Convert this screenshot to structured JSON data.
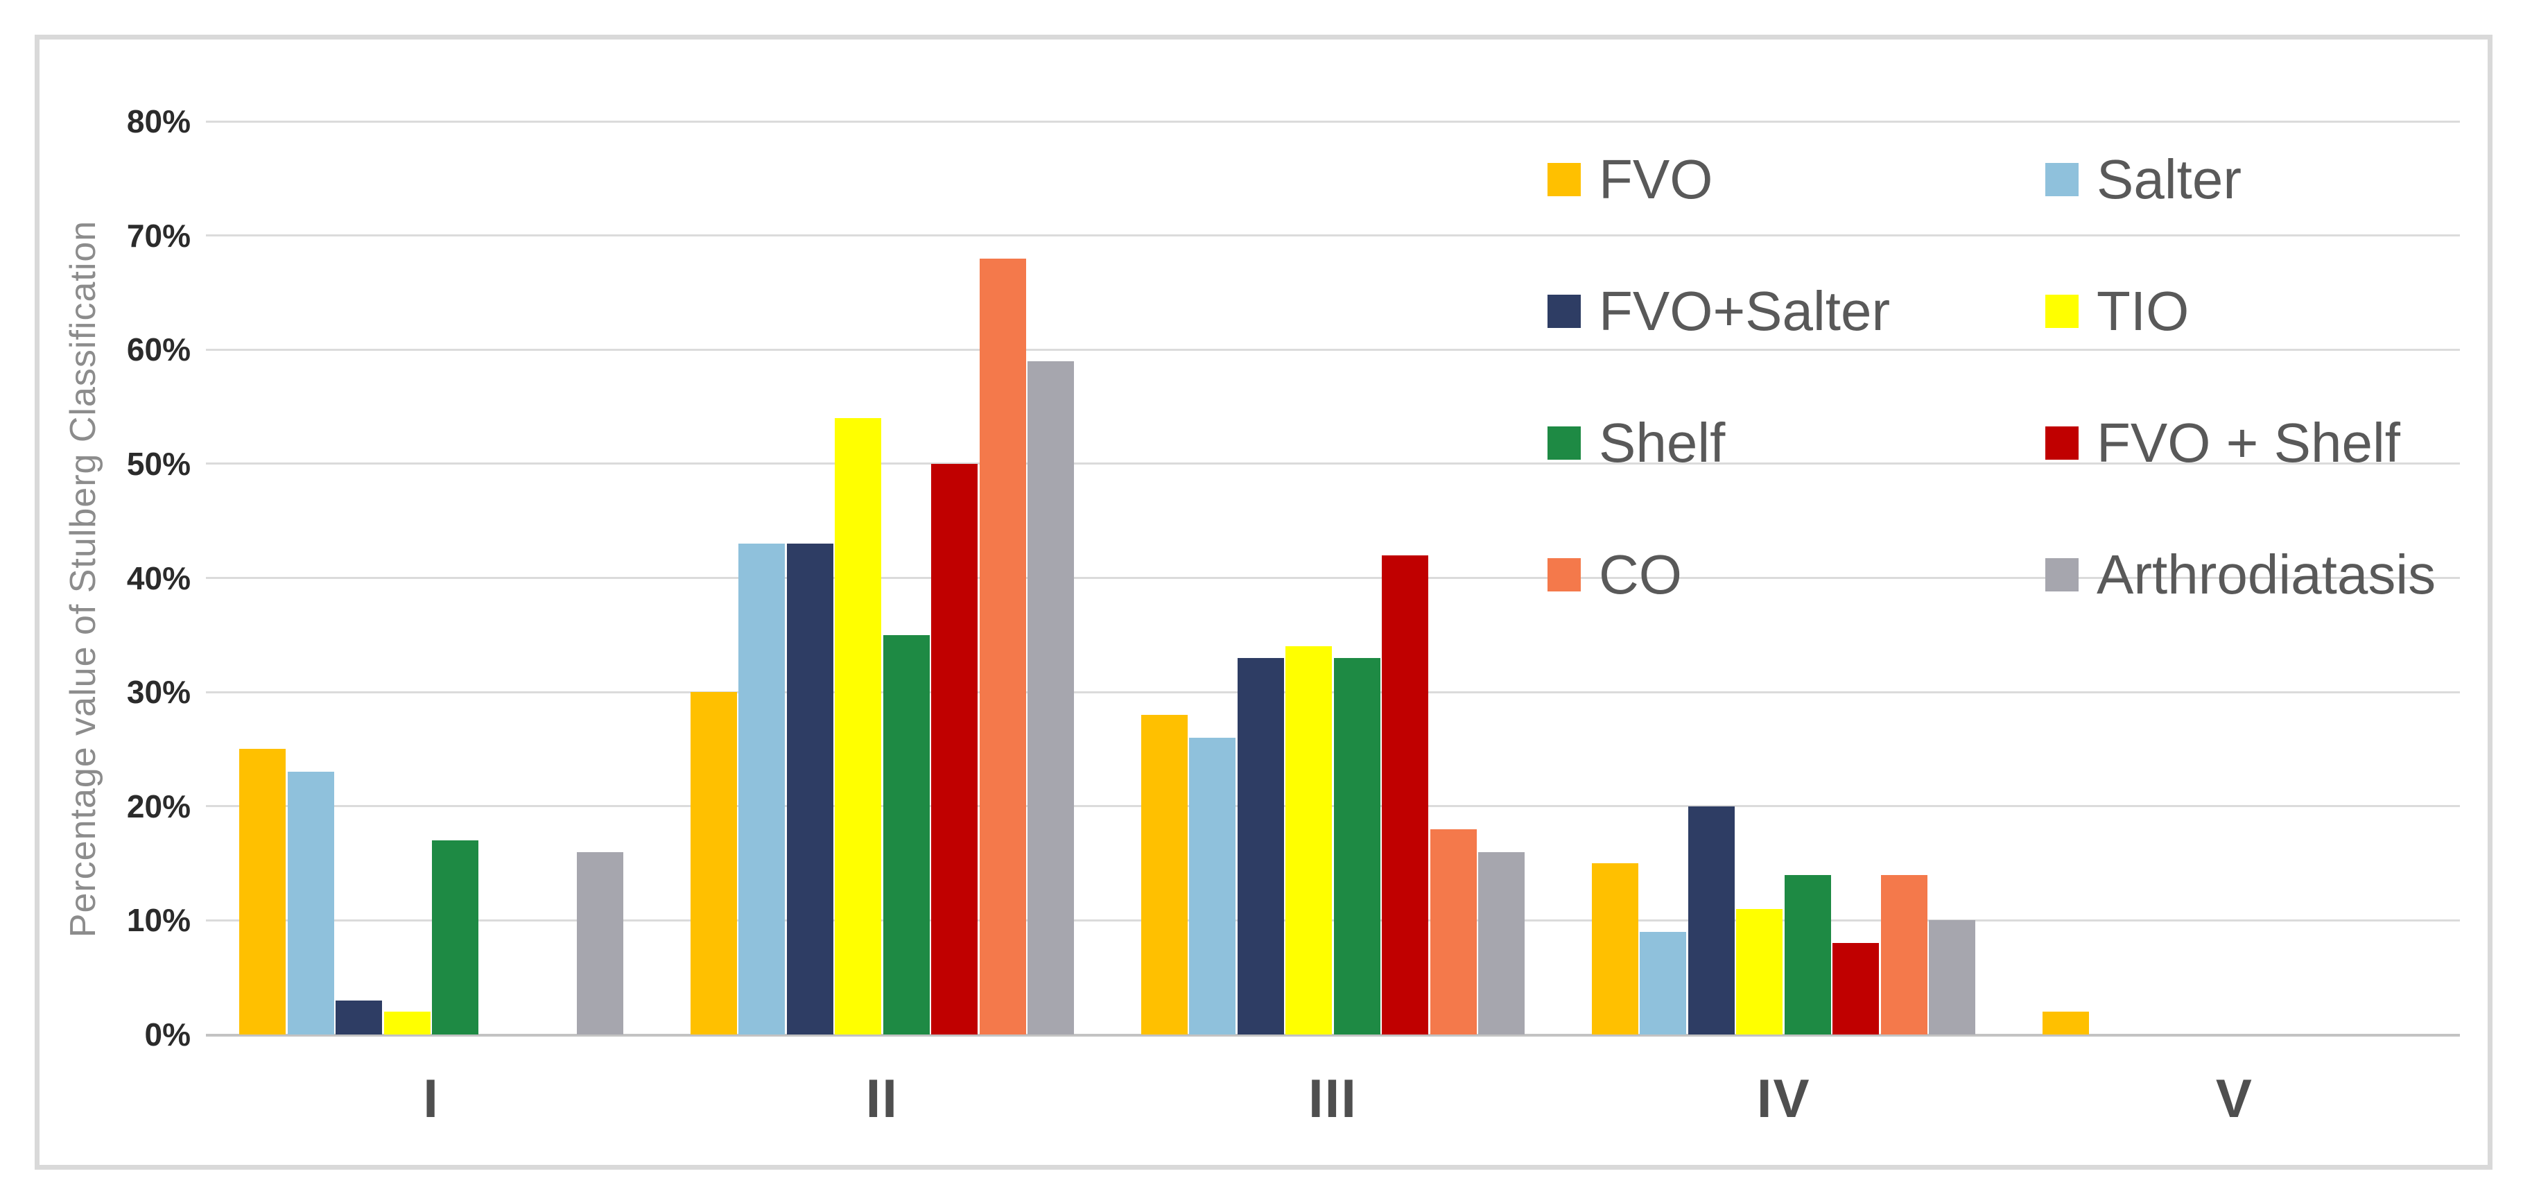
{
  "chart": {
    "background": "#FFFFFF",
    "border_color": "#D9D9D9",
    "gridline_color": "#DBDBDB",
    "tick_label_color": "#2B2B2B",
    "x_label_color": "#4F4F4F",
    "legend_text_color": "#595959",
    "y_title_color": "#8C8C8C"
  },
  "chart_data": {
    "type": "bar",
    "title": "",
    "xlabel": "",
    "ylabel": "Percentage value of Stulberg Classification",
    "categories": [
      "I",
      "II",
      "III",
      "IV",
      "V"
    ],
    "y_ticks": [
      "0%",
      "10%",
      "20%",
      "30%",
      "40%",
      "50%",
      "60%",
      "70%",
      "80%"
    ],
    "ylim": [
      0,
      80
    ],
    "grid": true,
    "legend_position": "overlay top-right, 2 columns x 4 rows",
    "series": [
      {
        "name": "FVO",
        "color": "#FFC000",
        "values": [
          25,
          30,
          28,
          15,
          2
        ]
      },
      {
        "name": "Salter",
        "color": "#8FC1DC",
        "values": [
          23,
          43,
          26,
          9,
          0
        ]
      },
      {
        "name": "FVO+Salter",
        "color": "#2E3D64",
        "values": [
          3,
          43,
          33,
          20,
          0
        ]
      },
      {
        "name": "TIO",
        "color": "#FFFF00",
        "values": [
          2,
          54,
          34,
          11,
          0
        ]
      },
      {
        "name": "Shelf",
        "color": "#1E8A44",
        "values": [
          17,
          35,
          33,
          14,
          0
        ]
      },
      {
        "name": "FVO + Shelf",
        "color": "#C00000",
        "values": [
          0,
          50,
          42,
          8,
          0
        ]
      },
      {
        "name": "CO",
        "color": "#F4794B",
        "values": [
          0,
          68,
          18,
          14,
          0
        ]
      },
      {
        "name": "Arthrodiatasis",
        "color": "#A6A6AE",
        "values": [
          16,
          59,
          16,
          10,
          0
        ]
      }
    ]
  }
}
